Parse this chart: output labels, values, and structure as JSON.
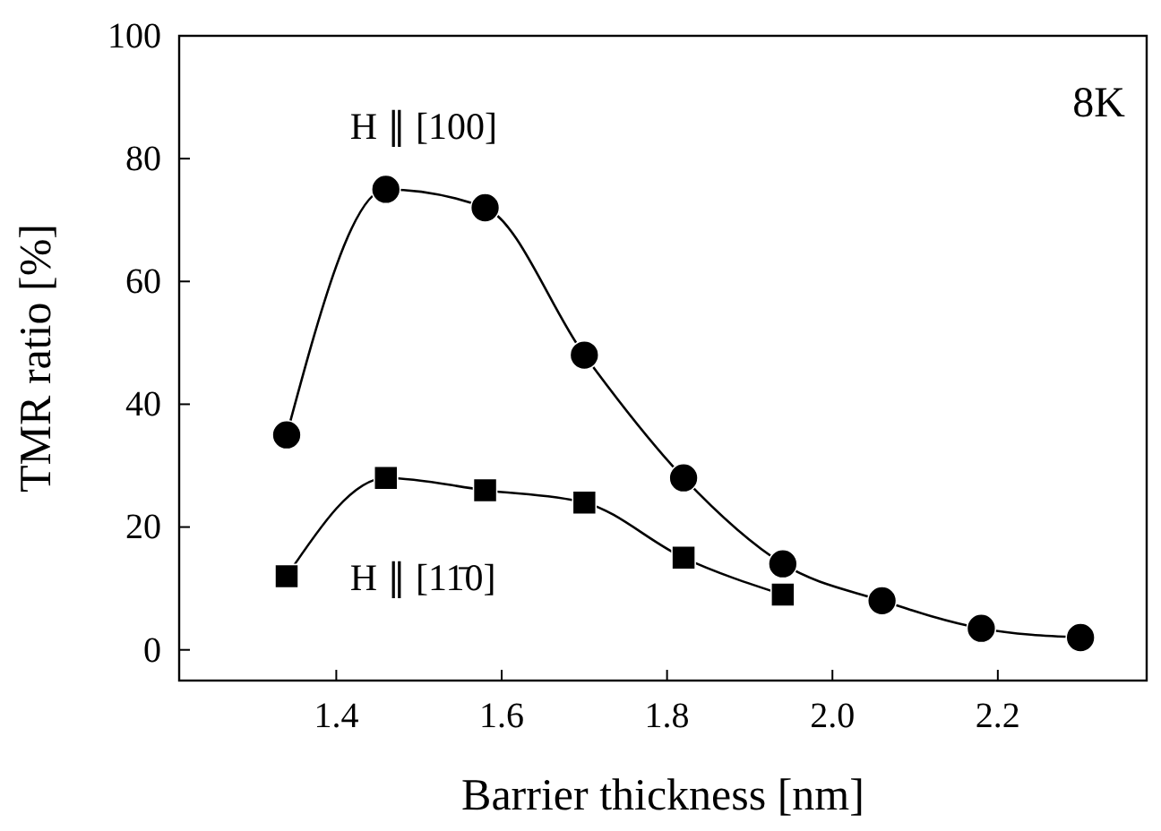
{
  "chart_data": {
    "type": "line",
    "xlabel": "Barrier thickness [nm]",
    "ylabel": "TMR ratio [%]",
    "x": [
      1.34,
      1.46,
      1.58,
      1.7,
      1.82,
      1.94,
      2.06,
      2.18,
      2.3
    ],
    "series": [
      {
        "name": "H ∥ [100]",
        "color": "#000000",
        "marker": "circle",
        "values": [
          35,
          75,
          72,
          48,
          28,
          14,
          8,
          3.5,
          2
        ]
      },
      {
        "name": "H ∥ [11̄0]",
        "color": "#000000",
        "marker": "square",
        "x": [
          1.34,
          1.46,
          1.58,
          1.7,
          1.82,
          1.94
        ],
        "values": [
          12,
          28,
          26,
          24,
          15,
          9
        ]
      }
    ],
    "xlim": [
      1.21,
      2.38
    ],
    "xticks": [
      1.4,
      1.6,
      1.8,
      {
        "value": 2.0,
        "label": "2.0"
      },
      2.2
    ],
    "ylim": [
      -5,
      100
    ],
    "yticks": [
      0,
      20,
      40,
      60,
      80,
      100
    ],
    "annotations": [
      "8K"
    ],
    "line_style": "solid"
  }
}
